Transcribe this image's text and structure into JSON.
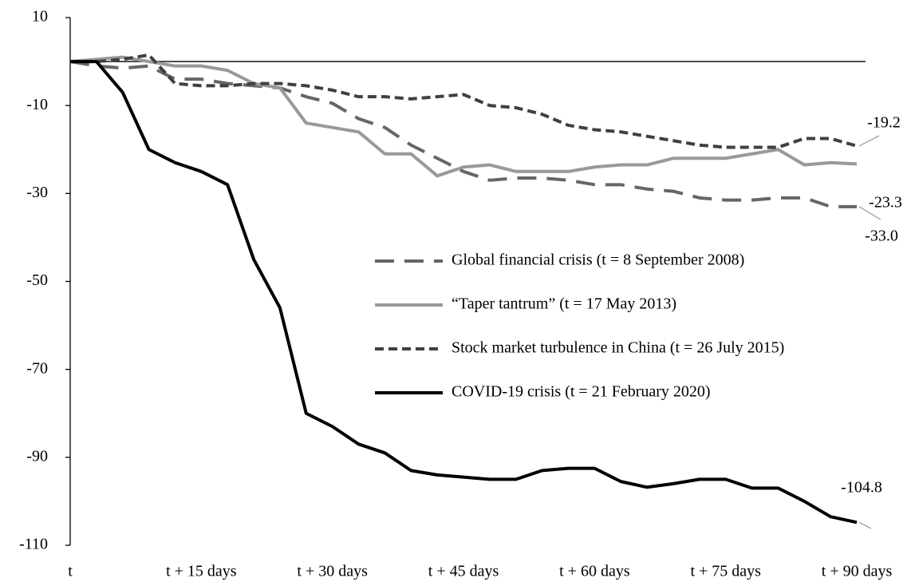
{
  "chart_data": {
    "type": "line",
    "x": [
      0,
      3,
      6,
      9,
      12,
      15,
      18,
      21,
      24,
      27,
      30,
      33,
      36,
      39,
      42,
      45,
      48,
      51,
      54,
      57,
      60,
      63,
      66,
      69,
      72,
      75,
      78,
      81,
      84,
      87,
      90
    ],
    "series": [
      {
        "name": "Global financial crisis (t = 8 September 2008)",
        "color": "#666666",
        "dash": "24,13",
        "values": [
          0,
          -1,
          -1.5,
          -1,
          -4,
          -4,
          -5,
          -5.5,
          -6,
          -8,
          -9.5,
          -13,
          -15,
          -19,
          -22,
          -25,
          -27,
          -26.5,
          -26.5,
          -27,
          -28,
          -28,
          -29,
          -29.5,
          -31,
          -31.5,
          -31.5,
          -31,
          -31,
          -33,
          -33.0
        ],
        "end_label": "-33.0"
      },
      {
        "name": "“Taper tantrum” (t = 17 May 2013)",
        "color": "#999999",
        "dash": "none",
        "values": [
          0,
          0.5,
          1,
          0,
          -1,
          -1,
          -2,
          -5,
          -6,
          -14,
          -15,
          -16,
          -21,
          -21,
          -26,
          -24,
          -23.5,
          -25,
          -25,
          -25,
          -24,
          -23.5,
          -23.5,
          -22,
          -22,
          -22,
          -21,
          -20,
          -23.5,
          -23,
          -23.3
        ],
        "end_label": "-23.3"
      },
      {
        "name": "Stock market turbulence in China (t = 26 July 2015)",
        "color": "#404040",
        "dash": "11,6",
        "values": [
          0,
          0,
          0.5,
          1.5,
          -5,
          -5.5,
          -5.5,
          -5,
          -5,
          -5.5,
          -6.5,
          -8,
          -8,
          -8.5,
          -8,
          -7.5,
          -10,
          -10.5,
          -12,
          -14.5,
          -15.5,
          -16,
          -17,
          -18,
          -19,
          -19.5,
          -19.5,
          -19.5,
          -17.5,
          -17.5,
          -19.2
        ],
        "end_label": "-19.2"
      },
      {
        "name": "COVID-19 crisis (t = 21 February 2020)",
        "color": "#000000",
        "dash": "none",
        "values": [
          0,
          0,
          -7,
          -20,
          -23,
          -25,
          -28,
          -45,
          -56,
          -80,
          -83,
          -87,
          -89,
          -93,
          -94,
          -94.5,
          -95,
          -95,
          -93,
          -92.5,
          -92.5,
          -95.5,
          -96.8,
          -96,
          -95,
          -95,
          -97,
          -97,
          -100,
          -103.5,
          -104.8
        ],
        "end_label": "-104.8"
      }
    ],
    "xlim": [
      0,
      91
    ],
    "xticks": [
      {
        "value": 0,
        "label": "t"
      },
      {
        "value": 15,
        "label": "t + 15 days"
      },
      {
        "value": 30,
        "label": "t + 30 days"
      },
      {
        "value": 45,
        "label": "t + 45 days"
      },
      {
        "value": 60,
        "label": "t + 60 days"
      },
      {
        "value": 75,
        "label": "t + 75 days"
      },
      {
        "value": 90,
        "label": "t + 90 days"
      }
    ],
    "ylim": [
      -110,
      10
    ],
    "yticks": [
      10,
      -10,
      -30,
      -50,
      -70,
      -90,
      -110
    ]
  }
}
